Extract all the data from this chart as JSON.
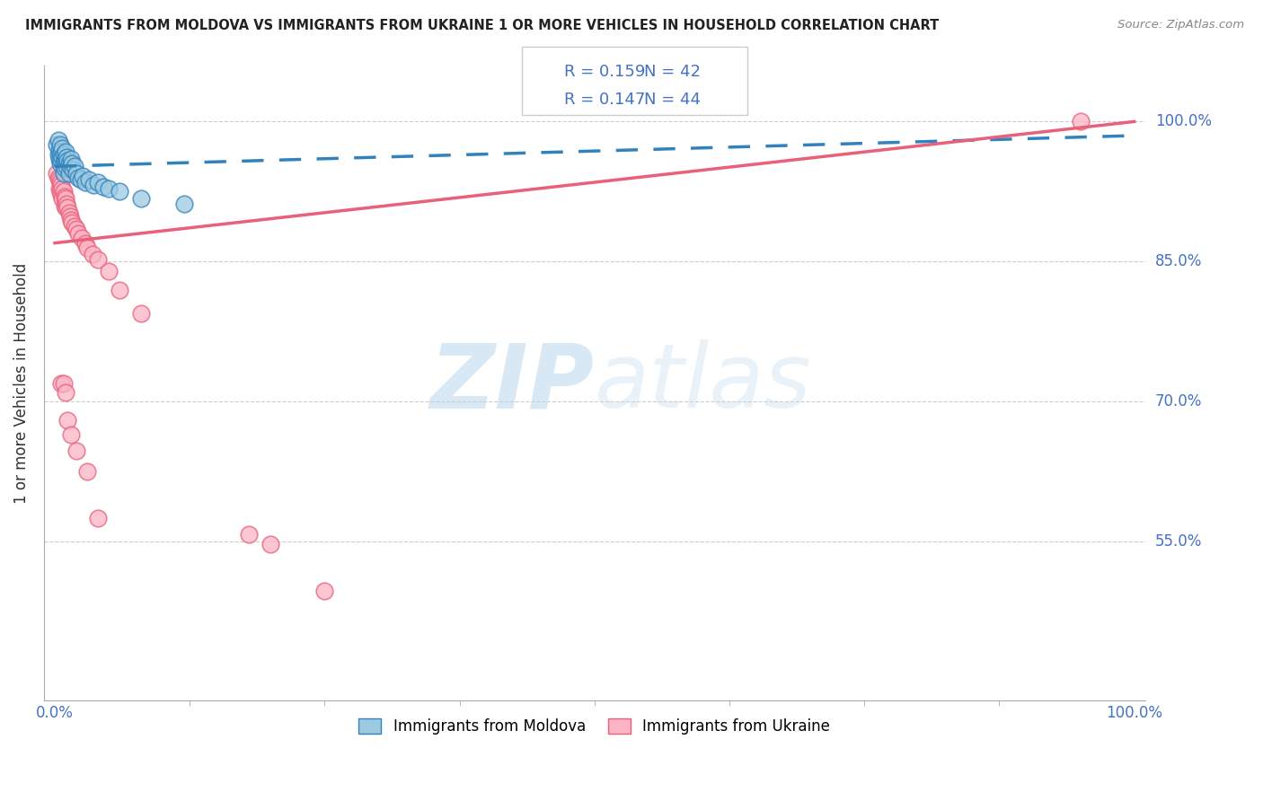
{
  "title": "IMMIGRANTS FROM MOLDOVA VS IMMIGRANTS FROM UKRAINE 1 OR MORE VEHICLES IN HOUSEHOLD CORRELATION CHART",
  "source": "Source: ZipAtlas.com",
  "ylabel": "1 or more Vehicles in Household",
  "ytick_labels": [
    "100.0%",
    "85.0%",
    "70.0%",
    "55.0%"
  ],
  "ytick_values": [
    1.0,
    0.85,
    0.7,
    0.55
  ],
  "xlim": [
    -0.01,
    1.01
  ],
  "ylim": [
    0.38,
    1.06
  ],
  "legend_label1": "Immigrants from Moldova",
  "legend_label2": "Immigrants from Ukraine",
  "R_moldova": 0.159,
  "N_moldova": 42,
  "R_ukraine": 0.147,
  "N_ukraine": 44,
  "moldova_color": "#9ECAE1",
  "ukraine_color": "#FBB4C4",
  "moldova_line_color": "#3182BD",
  "ukraine_line_color": "#E8607A",
  "watermark_zip": "ZIP",
  "watermark_atlas": "atlas",
  "background_color": "#ffffff",
  "moldova_x": [
    0.002,
    0.003,
    0.003,
    0.004,
    0.004,
    0.005,
    0.005,
    0.005,
    0.006,
    0.006,
    0.007,
    0.007,
    0.008,
    0.008,
    0.008,
    0.009,
    0.009,
    0.01,
    0.01,
    0.011,
    0.011,
    0.012,
    0.013,
    0.013,
    0.014,
    0.015,
    0.016,
    0.017,
    0.018,
    0.02,
    0.022,
    0.024,
    0.026,
    0.028,
    0.032,
    0.036,
    0.04,
    0.045,
    0.05,
    0.06,
    0.08,
    0.12
  ],
  "moldova_y": [
    0.975,
    0.98,
    0.965,
    0.97,
    0.96,
    0.975,
    0.965,
    0.955,
    0.968,
    0.958,
    0.972,
    0.962,
    0.965,
    0.955,
    0.945,
    0.96,
    0.95,
    0.968,
    0.958,
    0.962,
    0.952,
    0.958,
    0.955,
    0.945,
    0.952,
    0.96,
    0.955,
    0.948,
    0.952,
    0.945,
    0.94,
    0.938,
    0.942,
    0.935,
    0.938,
    0.932,
    0.935,
    0.93,
    0.928,
    0.925,
    0.918,
    0.912
  ],
  "ukraine_x": [
    0.002,
    0.003,
    0.004,
    0.004,
    0.005,
    0.005,
    0.006,
    0.006,
    0.007,
    0.007,
    0.008,
    0.009,
    0.009,
    0.01,
    0.01,
    0.011,
    0.012,
    0.013,
    0.014,
    0.015,
    0.016,
    0.018,
    0.02,
    0.022,
    0.025,
    0.028,
    0.03,
    0.035,
    0.04,
    0.05,
    0.06,
    0.08,
    0.006,
    0.008,
    0.01,
    0.012,
    0.015,
    0.02,
    0.03,
    0.04,
    0.18,
    0.2,
    0.25,
    0.95
  ],
  "ukraine_y": [
    0.945,
    0.94,
    0.938,
    0.928,
    0.935,
    0.925,
    0.932,
    0.922,
    0.928,
    0.918,
    0.925,
    0.92,
    0.91,
    0.918,
    0.908,
    0.912,
    0.908,
    0.902,
    0.898,
    0.895,
    0.892,
    0.888,
    0.885,
    0.88,
    0.875,
    0.87,
    0.865,
    0.858,
    0.852,
    0.84,
    0.82,
    0.795,
    0.72,
    0.72,
    0.71,
    0.68,
    0.665,
    0.648,
    0.625,
    0.575,
    0.558,
    0.548,
    0.498,
    1.0
  ],
  "moldova_trendline_x": [
    0.0,
    1.0
  ],
  "moldova_trendline_y": [
    0.952,
    0.985
  ],
  "ukraine_trendline_x": [
    0.0,
    1.0
  ],
  "ukraine_trendline_y": [
    0.87,
    1.0
  ]
}
